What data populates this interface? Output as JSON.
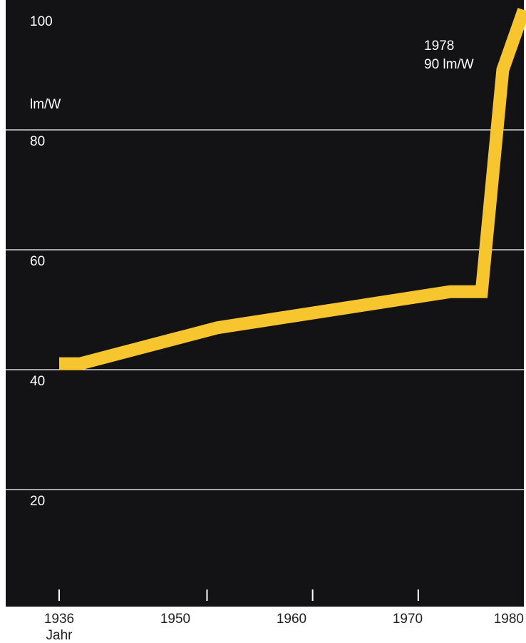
{
  "chart_data": {
    "type": "line",
    "title": "",
    "xlabel": "Jahr",
    "ylabel": "lm/W",
    "x": [
      1936,
      1938,
      1951,
      1973,
      1976,
      1978,
      1980
    ],
    "series": [
      {
        "values": [
          41,
          41,
          47,
          53,
          53,
          90,
          100
        ]
      }
    ],
    "ylim": [
      0,
      100
    ],
    "xlim": [
      1936,
      1980
    ],
    "yticks": [
      "100",
      "80",
      "60",
      "40",
      "20"
    ],
    "xticks": [
      "1936",
      "1950",
      "1960",
      "1970",
      "1980"
    ],
    "grid": true,
    "annotation": {
      "line1": "1978",
      "line2": "90 lm/W"
    },
    "colors": {
      "plot_background": "#131315",
      "line": "#f7c52d",
      "grid": "#ffffff",
      "tick_marks": "#ffffff",
      "axis_text": "#222222",
      "page_background": "#ffffff"
    }
  }
}
